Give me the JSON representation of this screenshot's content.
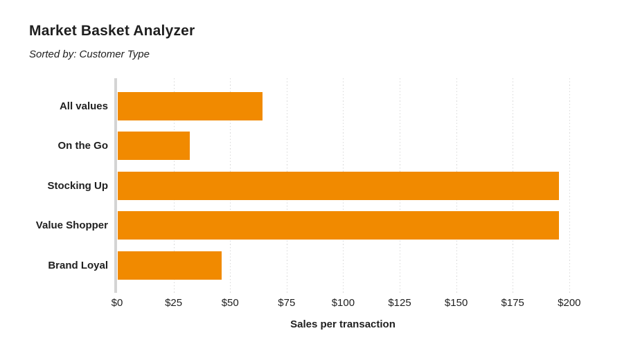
{
  "header": {
    "title": "Market Basket Analyzer",
    "subtitle": "Sorted by: Customer Type"
  },
  "colors": {
    "bar": "#F18A00",
    "axis_line": "#D4D4D4",
    "gridline": "#D9D9D9",
    "text": "#1F1F1F",
    "background": "#FFFFFF"
  },
  "chart_data": {
    "type": "bar",
    "orientation": "horizontal",
    "title": "Market Basket Analyzer",
    "subtitle": "Sorted by: Customer Type",
    "categories": [
      "All values",
      "On the Go",
      "Stocking Up",
      "Value Shopper",
      "Brand Loyal"
    ],
    "values": [
      64,
      32,
      195,
      195,
      46
    ],
    "xlabel": "Sales per transaction",
    "ylabel": "",
    "x_tick_labels": [
      "$0",
      "$25",
      "$50",
      "$75",
      "$100",
      "$125",
      "$150",
      "$175",
      "$200"
    ],
    "x_tick_values": [
      0,
      25,
      50,
      75,
      100,
      125,
      150,
      175,
      200
    ],
    "xlim": [
      0,
      212
    ],
    "grid": "vertical-dotted",
    "legend": "none"
  }
}
